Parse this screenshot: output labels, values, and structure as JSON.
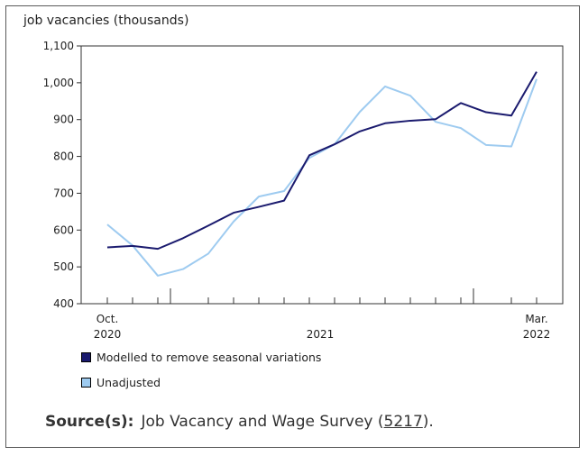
{
  "chart_data": {
    "type": "line",
    "title": "",
    "ylabel": "job vacancies (thousands)",
    "xlabel": "",
    "ylim": [
      400,
      1100
    ],
    "yticks": [
      400,
      500,
      600,
      700,
      800,
      900,
      1000,
      1100
    ],
    "ytick_labels": [
      "400",
      "500",
      "600",
      "700",
      "800",
      "900",
      "1,000",
      "1,100"
    ],
    "x": [
      "2020-10",
      "2020-11",
      "2020-12",
      "2021-01",
      "2021-02",
      "2021-03",
      "2021-04",
      "2021-05",
      "2021-06",
      "2021-07",
      "2021-08",
      "2021-09",
      "2021-10",
      "2021-11",
      "2021-12",
      "2022-01",
      "2022-02",
      "2022-03"
    ],
    "xtick_labels": [
      {
        "month": "Oct.",
        "year": "2020"
      },
      {
        "month": "",
        "year": "2021"
      },
      {
        "month": "Mar.",
        "year": "2022"
      }
    ],
    "grid": false,
    "legend": "bottom-left",
    "series": [
      {
        "name": "Modelled to remove seasonal variations",
        "color": "#1a1a6e",
        "values": [
          553,
          557,
          549,
          578,
          612,
          647,
          663,
          680,
          803,
          833,
          868,
          890,
          897,
          901,
          945,
          920,
          911,
          1030
        ]
      },
      {
        "name": "Unadjusted",
        "color": "#9ecbf0",
        "values": [
          615,
          558,
          476,
          494,
          536,
          623,
          691,
          706,
          796,
          833,
          921,
          990,
          965,
          894,
          877,
          831,
          827,
          1010
        ]
      }
    ]
  },
  "source": {
    "label": "Source(s):",
    "text": "Job Vacancy and Wage Survey (",
    "link": "5217",
    "end": ")."
  }
}
